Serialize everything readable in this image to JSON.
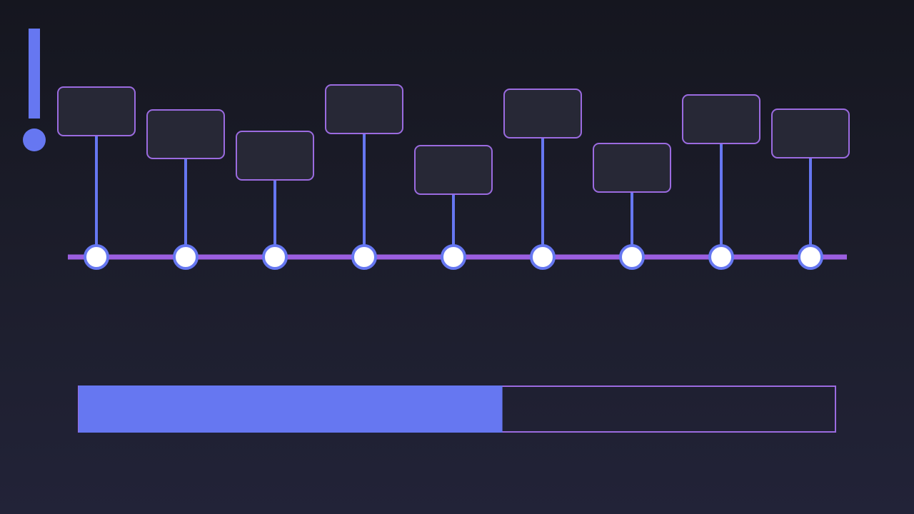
{
  "progress_bar": {
    "value": 56,
    "range": [
      0,
      100
    ]
  }
}
